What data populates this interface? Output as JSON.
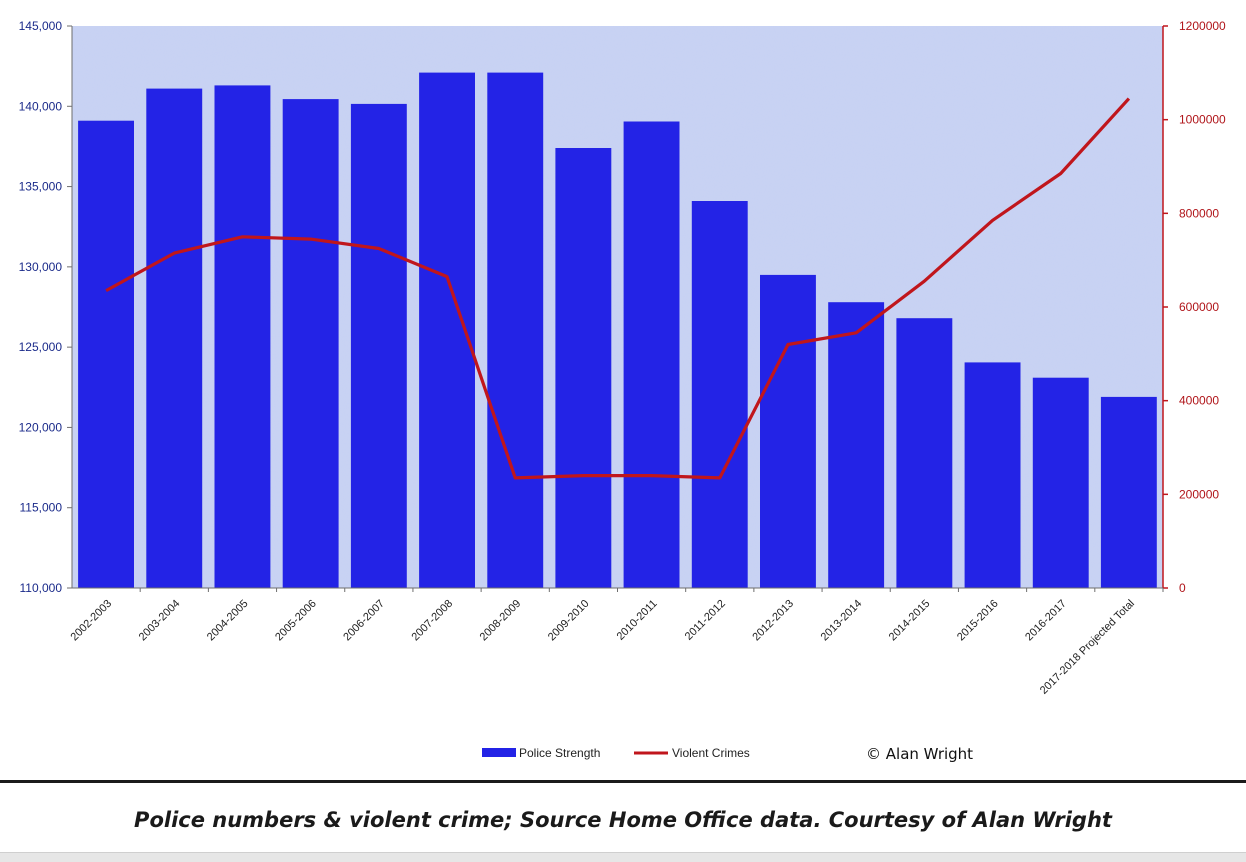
{
  "chart_data": {
    "type": "bar",
    "categories": [
      "2002-2003",
      "2003-2004",
      "2004-2005",
      "2005-2006",
      "2006-2007",
      "2007-2008",
      "2008-2009",
      "2009-2010",
      "2010-2011",
      "2011-2012",
      "2012-2013",
      "2013-2014",
      "2014-2015",
      "2015-2016",
      "2016-2017",
      "2017-2018 Projected Total"
    ],
    "series": [
      {
        "name": "Police Strength",
        "type": "bar",
        "axis": "left",
        "color": "#2323e6",
        "values": [
          139100,
          141100,
          141300,
          140450,
          140150,
          142100,
          142100,
          137400,
          139050,
          134100,
          129500,
          127800,
          126800,
          124050,
          123100,
          121900
        ]
      },
      {
        "name": "Violent Crimes",
        "type": "line",
        "axis": "right",
        "color": "#c0161c",
        "values": [
          635000,
          715000,
          750000,
          745000,
          725000,
          665000,
          235000,
          240000,
          240000,
          235000,
          520000,
          545000,
          655000,
          785000,
          885000,
          1045000
        ]
      }
    ],
    "y_left": {
      "min": 110000,
      "max": 145000,
      "ticks": [
        "110,000",
        "115,000",
        "120,000",
        "125,000",
        "130,000",
        "135,000",
        "140,000",
        "145,000"
      ]
    },
    "y_right": {
      "min": 0,
      "max": 1200000,
      "ticks": [
        "0",
        "200000",
        "400000",
        "600000",
        "800000",
        "1000000",
        "1200000"
      ]
    },
    "legend_position": "bottom",
    "credit": "© Alan Wright",
    "plot_background": "#c9d3f2"
  },
  "caption": "Police numbers & violent crime; Source Home Office data. Courtesy of Alan Wright"
}
